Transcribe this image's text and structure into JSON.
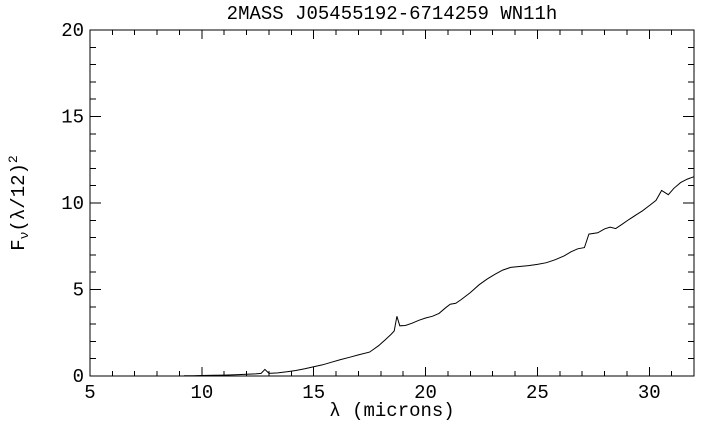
{
  "chart_data": {
    "type": "line",
    "title": "2MASS J05455192-6714259 WN11h",
    "xlabel": "λ (microns)",
    "ylabel": "Fν(λ/12)²",
    "ylabel_parts": {
      "base": "F",
      "sub": "ν",
      "mid": "(λ/12)",
      "sup": "2"
    },
    "xlim": [
      5,
      32
    ],
    "ylim": [
      0,
      20
    ],
    "x_major_ticks": [
      5,
      10,
      15,
      20,
      25,
      30
    ],
    "x_tick_labels": [
      "5",
      "10",
      "15",
      "20",
      "25",
      "30"
    ],
    "x_minor_step": 1,
    "y_major_ticks": [
      0,
      5,
      10,
      15,
      20
    ],
    "y_tick_labels": [
      "0",
      "5",
      "10",
      "15",
      "20"
    ],
    "y_minor_step": 1,
    "grid": false,
    "legend": null,
    "background_color": "#ffffff",
    "axis_color": "#000000",
    "line_color": "#000000",
    "series": [
      {
        "name": "spectrum",
        "points": [
          [
            9.2,
            0.02
          ],
          [
            9.6,
            0.02
          ],
          [
            10.0,
            0.03
          ],
          [
            10.5,
            0.04
          ],
          [
            11.0,
            0.05
          ],
          [
            11.5,
            0.07
          ],
          [
            12.0,
            0.1
          ],
          [
            12.4,
            0.12
          ],
          [
            12.65,
            0.15
          ],
          [
            12.82,
            0.38
          ],
          [
            13.0,
            0.15
          ],
          [
            13.4,
            0.18
          ],
          [
            13.8,
            0.24
          ],
          [
            14.2,
            0.32
          ],
          [
            14.6,
            0.42
          ],
          [
            15.0,
            0.54
          ],
          [
            15.4,
            0.65
          ],
          [
            15.8,
            0.8
          ],
          [
            16.2,
            0.95
          ],
          [
            16.6,
            1.08
          ],
          [
            17.0,
            1.22
          ],
          [
            17.5,
            1.38
          ],
          [
            17.9,
            1.75
          ],
          [
            18.2,
            2.1
          ],
          [
            18.45,
            2.4
          ],
          [
            18.6,
            2.6
          ],
          [
            18.72,
            3.45
          ],
          [
            18.85,
            2.9
          ],
          [
            19.1,
            2.92
          ],
          [
            19.4,
            3.05
          ],
          [
            19.7,
            3.22
          ],
          [
            20.0,
            3.35
          ],
          [
            20.3,
            3.45
          ],
          [
            20.6,
            3.62
          ],
          [
            20.9,
            3.95
          ],
          [
            21.1,
            4.15
          ],
          [
            21.35,
            4.2
          ],
          [
            21.6,
            4.42
          ],
          [
            22.0,
            4.82
          ],
          [
            22.4,
            5.28
          ],
          [
            22.75,
            5.6
          ],
          [
            23.1,
            5.88
          ],
          [
            23.45,
            6.12
          ],
          [
            23.8,
            6.28
          ],
          [
            24.2,
            6.33
          ],
          [
            24.6,
            6.38
          ],
          [
            25.0,
            6.45
          ],
          [
            25.4,
            6.55
          ],
          [
            25.8,
            6.72
          ],
          [
            26.2,
            6.95
          ],
          [
            26.5,
            7.18
          ],
          [
            26.8,
            7.35
          ],
          [
            27.1,
            7.42
          ],
          [
            27.3,
            8.2
          ],
          [
            27.7,
            8.28
          ],
          [
            28.0,
            8.5
          ],
          [
            28.25,
            8.6
          ],
          [
            28.5,
            8.52
          ],
          [
            28.8,
            8.78
          ],
          [
            29.1,
            9.05
          ],
          [
            29.4,
            9.3
          ],
          [
            29.7,
            9.55
          ],
          [
            30.0,
            9.85
          ],
          [
            30.3,
            10.15
          ],
          [
            30.55,
            10.72
          ],
          [
            30.85,
            10.48
          ],
          [
            31.1,
            10.85
          ],
          [
            31.4,
            11.18
          ],
          [
            31.7,
            11.38
          ],
          [
            32.0,
            11.52
          ]
        ]
      }
    ]
  }
}
